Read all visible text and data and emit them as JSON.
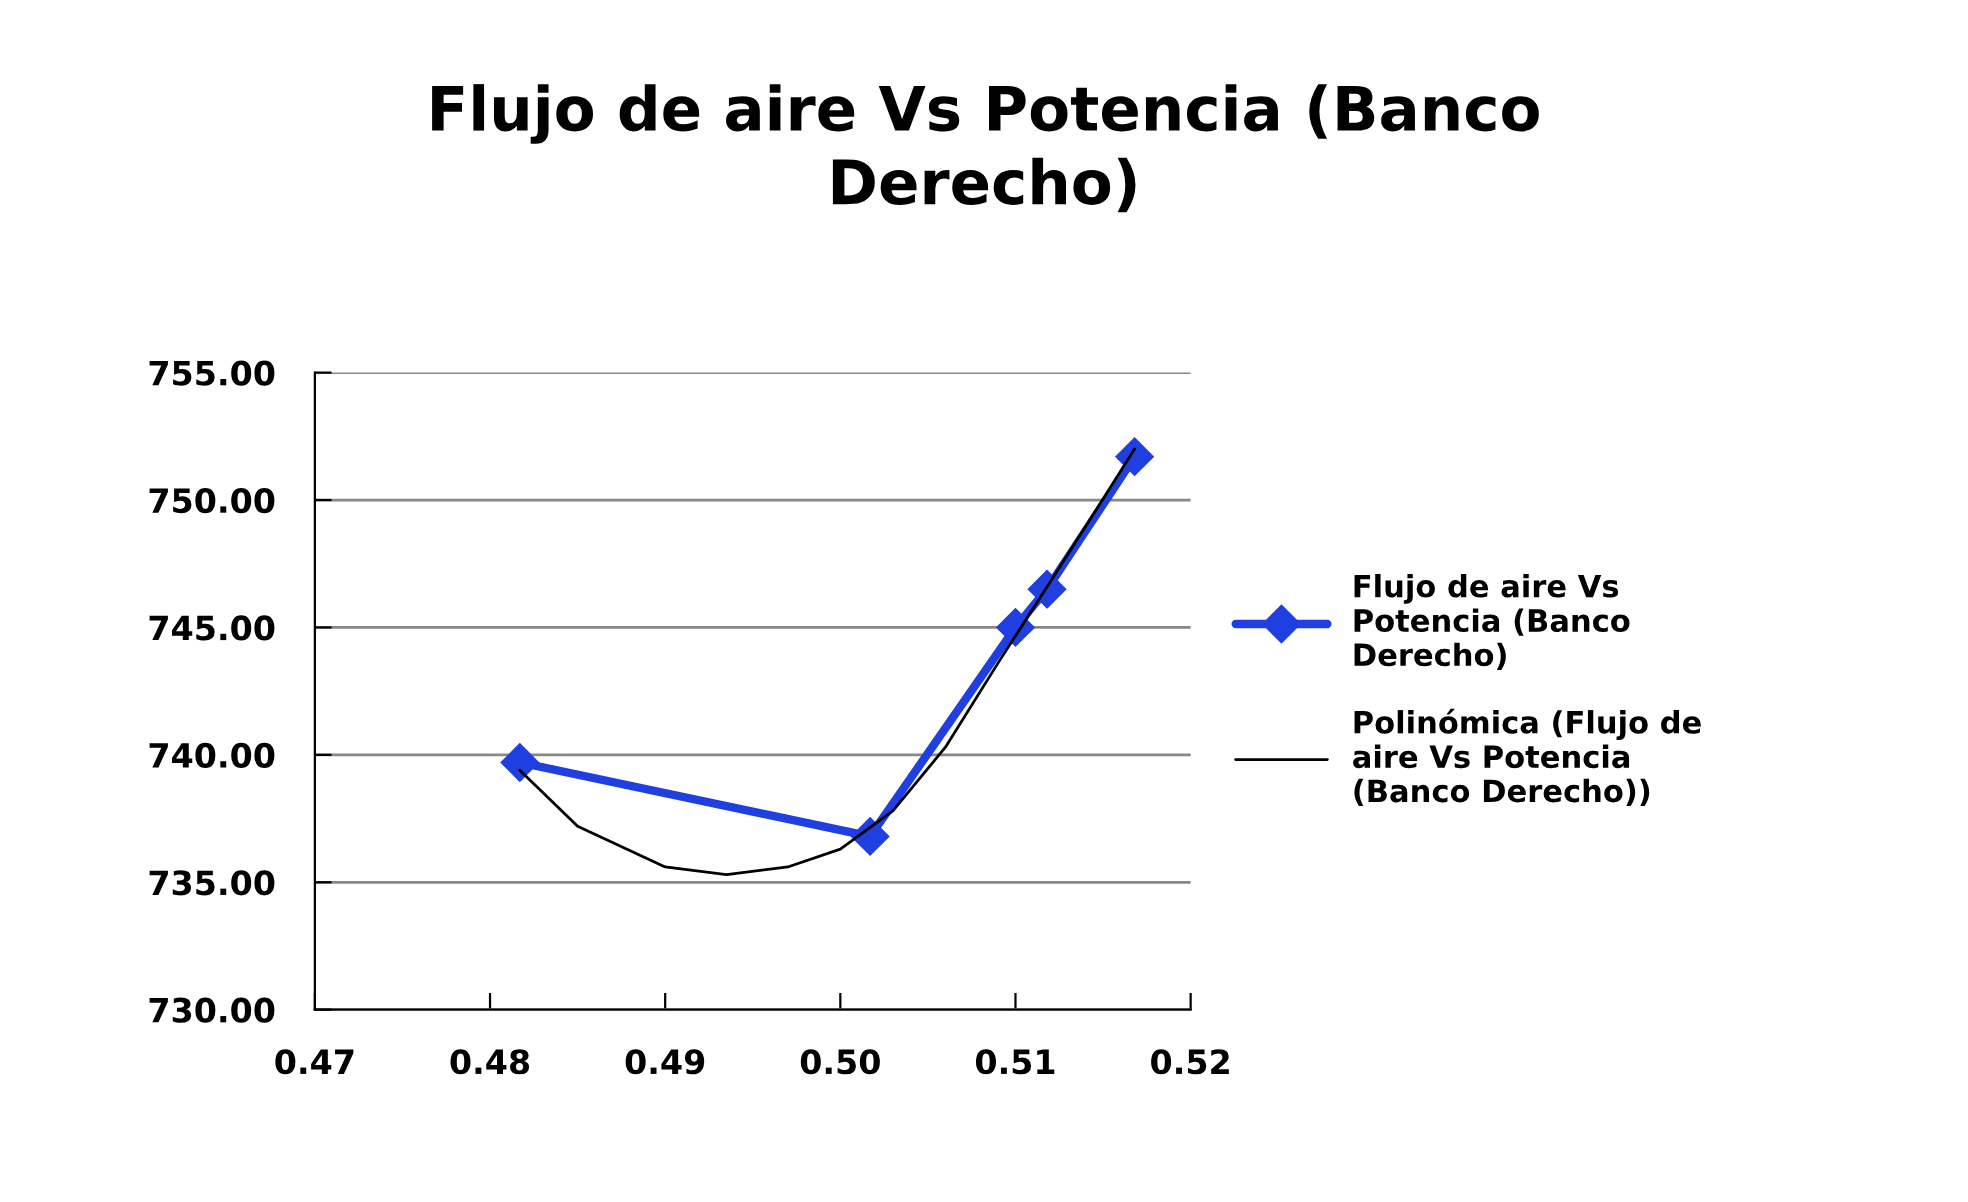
{
  "chart_data": {
    "type": "line",
    "title": "Flujo de aire Vs Potencia (Banco Derecho)",
    "series": [
      {
        "name": "Flujo de aire Vs Potencia (Banco Derecho)",
        "color": "#1f3fe0",
        "marker": "diamond",
        "x": [
          0.4817,
          0.5017,
          0.51,
          0.5118,
          0.5168
        ],
        "values": [
          739.7,
          736.8,
          745.0,
          746.5,
          751.7
        ]
      },
      {
        "name": "Polinómica (Flujo de aire Vs Potencia (Banco Derecho))",
        "color": "#000000",
        "marker": "none",
        "x": [
          0.4817,
          0.485,
          0.49,
          0.4935,
          0.497,
          0.5,
          0.503,
          0.506,
          0.509,
          0.512,
          0.5145,
          0.5168
        ],
        "values": [
          739.4,
          737.2,
          735.6,
          735.3,
          735.6,
          736.3,
          737.8,
          740.3,
          743.6,
          746.8,
          749.5,
          752.0
        ]
      }
    ],
    "xlim": [
      0.47,
      0.52
    ],
    "xticks": [
      0.47,
      0.48,
      0.49,
      {
        "value": 0.5,
        "label": "0.50"
      },
      0.51,
      0.52
    ],
    "ylim": [
      730,
      755
    ],
    "yticks": [
      {
        "value": 730,
        "label": "730.00"
      },
      {
        "value": 735,
        "label": "735.00"
      },
      {
        "value": 740,
        "label": "740.00"
      },
      {
        "value": 745,
        "label": "745.00"
      },
      {
        "value": 750,
        "label": "750.00"
      },
      {
        "value": 755,
        "label": "755.00"
      }
    ],
    "grid": "y",
    "legend": "right"
  }
}
